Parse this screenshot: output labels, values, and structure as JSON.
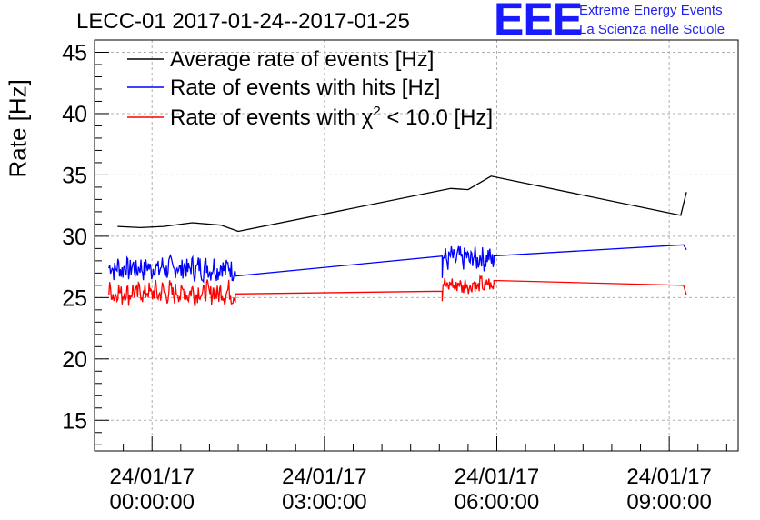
{
  "header": {
    "title": "LECC-01 2017-01-24--2017-01-25"
  },
  "logo": {
    "mark": "EEE",
    "line1": "Extreme Energy Events",
    "line2": "La Scienza nelle Scuole",
    "color": "#1a1aff"
  },
  "chart_data": {
    "type": "line",
    "title": "LECC-01 2017-01-24--2017-01-25",
    "xlabel": "",
    "ylabel": "Rate [Hz]",
    "x_unit": "hours since 24/01/17 00:00:00",
    "xlim": [
      -1.0,
      10.2
    ],
    "ylim": [
      12.5,
      46
    ],
    "grid": true,
    "legend_position": "top-left",
    "x_ticks": [
      {
        "x": 0,
        "date": "24/01/17",
        "time": "00:00:00"
      },
      {
        "x": 3,
        "date": "24/01/17",
        "time": "03:00:00"
      },
      {
        "x": 6,
        "date": "24/01/17",
        "time": "06:00:00"
      },
      {
        "x": 9,
        "date": "24/01/17",
        "time": "09:00:00"
      }
    ],
    "y_ticks": [
      15,
      20,
      25,
      30,
      35,
      40,
      45
    ],
    "series": [
      {
        "name": "Average rate of events [Hz]",
        "color": "#000000",
        "points": [
          [
            -0.6,
            30.8
          ],
          [
            -0.2,
            30.7
          ],
          [
            0.2,
            30.8
          ],
          [
            0.7,
            31.1
          ],
          [
            1.2,
            30.9
          ],
          [
            1.5,
            30.4
          ],
          [
            5.2,
            33.9
          ],
          [
            5.5,
            33.8
          ],
          [
            5.9,
            34.9
          ],
          [
            9.2,
            31.7
          ],
          [
            9.3,
            33.6
          ]
        ]
      },
      {
        "name": "Rate of events with hits [Hz]",
        "color": "#0000ff",
        "noisy_segments": [
          {
            "x_start": -0.75,
            "x_end": 1.45,
            "mean": 27.4,
            "amplitude": 0.9
          },
          {
            "x_start": 5.05,
            "x_end": 5.95,
            "mean": 28.2,
            "amplitude": 0.9
          }
        ],
        "points": [
          [
            1.45,
            27.1
          ],
          [
            5.05,
            26.6
          ],
          [
            5.95,
            28.4
          ],
          [
            9.25,
            29.3
          ],
          [
            9.3,
            28.9
          ]
        ]
      },
      {
        "name": "Rate of events with χ² < 10.0 [Hz]",
        "legend_prefix": "Rate of events with ",
        "legend_chi": "χ",
        "legend_sup": "2",
        "legend_suffix": " < 10.0 [Hz]",
        "color": "#ff0000",
        "noisy_segments": [
          {
            "x_start": -0.75,
            "x_end": 1.45,
            "mean": 25.4,
            "amplitude": 0.9
          },
          {
            "x_start": 5.05,
            "x_end": 5.95,
            "mean": 26.0,
            "amplitude": 0.6
          }
        ],
        "points": [
          [
            1.45,
            24.7
          ],
          [
            5.05,
            24.7
          ],
          [
            5.95,
            26.4
          ],
          [
            9.25,
            26.0
          ],
          [
            9.3,
            25.2
          ]
        ]
      }
    ]
  }
}
